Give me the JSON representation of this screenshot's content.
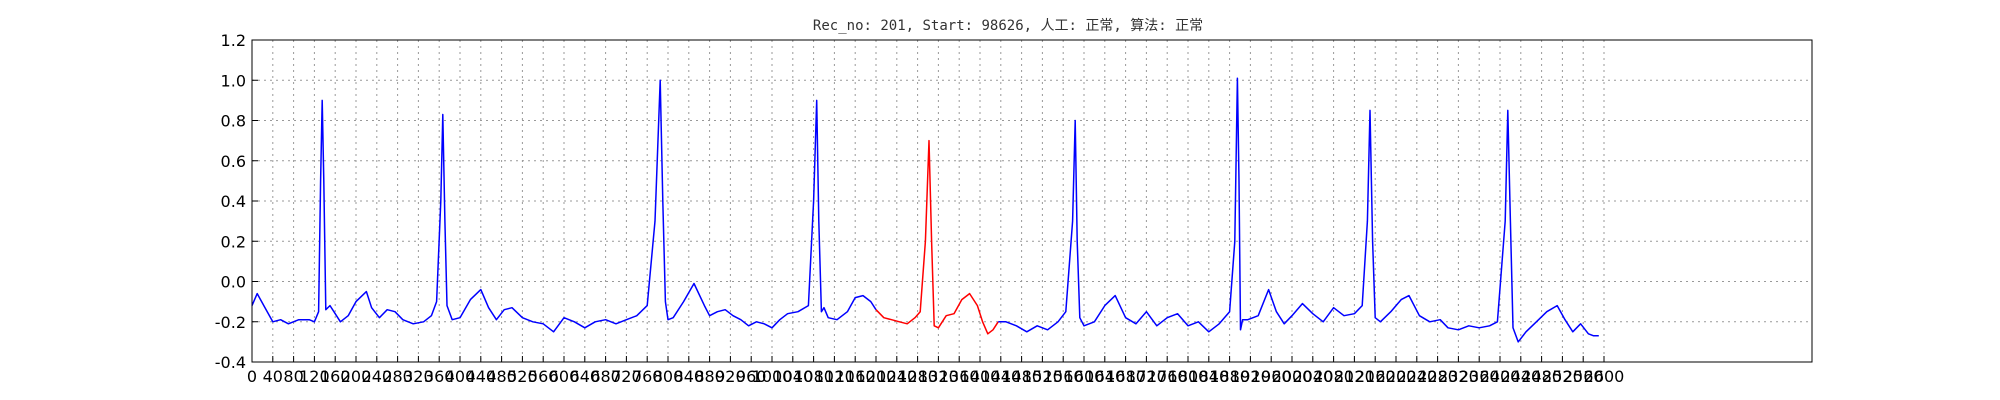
{
  "chart_data": {
    "type": "line",
    "title": "Rec_no: 201, Start: 98626, 人工: 正常, 算法: 正常",
    "xlabel": "",
    "ylabel": "",
    "xlim": [
      0,
      3000
    ],
    "ylim": [
      -0.4,
      1.2
    ],
    "grid": true,
    "x_ticks": [
      0,
      40,
      80,
      120,
      160,
      200,
      240,
      280,
      320,
      360,
      400,
      440,
      480,
      520,
      560,
      600,
      640,
      680,
      720,
      760,
      800,
      840,
      880,
      920,
      960,
      1000,
      1040,
      1080,
      1120,
      1160,
      1200,
      1240,
      1280,
      1320,
      1360,
      1400,
      1440,
      1480,
      1520,
      1560,
      1600,
      1640,
      1680,
      1720,
      1760,
      1800,
      1840,
      1880,
      1920,
      1960,
      2000,
      2040,
      2080,
      2120,
      2160,
      2200,
      2240,
      2280,
      2320,
      2360,
      2400,
      2440,
      2480,
      2520,
      2560,
      2600
    ],
    "y_ticks": [
      "-0.4",
      "-0.2",
      "0.0",
      "0.2",
      "0.4",
      "0.6",
      "0.8",
      "1.0",
      "1.2"
    ],
    "series": [
      {
        "color": "#0000ff",
        "x": [
          0,
          10,
          25,
          40,
          55,
          70,
          90,
          110,
          120,
          128,
          132,
          135,
          138,
          142,
          150,
          160,
          170,
          185,
          200,
          220,
          230,
          245,
          260,
          275,
          290,
          310,
          330,
          345,
          355,
          363,
          367,
          371,
          375,
          385,
          400,
          420,
          440,
          455,
          470,
          485,
          500,
          520,
          540,
          560,
          580,
          600,
          620,
          640,
          660,
          680,
          700,
          720,
          740,
          760,
          775,
          785,
          790,
          795,
          800,
          810,
          830,
          850,
          870,
          880,
          895,
          910,
          925,
          940,
          955,
          970,
          985,
          1000,
          1015,
          1030,
          1050,
          1070,
          1080,
          1086,
          1090,
          1095,
          1100,
          1108,
          1125,
          1145,
          1160,
          1175,
          1190,
          1200
        ],
        "y": [
          -0.12,
          -0.06,
          -0.13,
          -0.2,
          -0.19,
          -0.21,
          -0.19,
          -0.19,
          -0.2,
          -0.15,
          0.5,
          0.9,
          0.5,
          -0.14,
          -0.12,
          -0.16,
          -0.2,
          -0.17,
          -0.1,
          -0.05,
          -0.13,
          -0.18,
          -0.14,
          -0.15,
          -0.19,
          -0.21,
          -0.2,
          -0.17,
          -0.1,
          0.4,
          0.83,
          0.3,
          -0.12,
          -0.19,
          -0.18,
          -0.09,
          -0.04,
          -0.13,
          -0.19,
          -0.14,
          -0.13,
          -0.18,
          -0.2,
          -0.21,
          -0.25,
          -0.18,
          -0.2,
          -0.23,
          -0.2,
          -0.19,
          -0.21,
          -0.19,
          -0.17,
          -0.12,
          0.3,
          1.0,
          0.4,
          -0.1,
          -0.19,
          -0.18,
          -0.1,
          -0.01,
          -0.12,
          -0.17,
          -0.15,
          -0.14,
          -0.17,
          -0.19,
          -0.22,
          -0.2,
          -0.21,
          -0.23,
          -0.19,
          -0.16,
          -0.15,
          -0.12,
          0.4,
          0.9,
          0.3,
          -0.15,
          -0.13,
          -0.18,
          -0.19,
          -0.15,
          -0.08,
          -0.07,
          -0.1,
          -0.14
        ]
      },
      {
        "color": "#ff0000",
        "x": [
          1200,
          1215,
          1230,
          1245,
          1260,
          1275,
          1285,
          1295,
          1302,
          1307,
          1312,
          1320,
          1335,
          1350,
          1365,
          1380,
          1395,
          1405,
          1415,
          1425,
          1435
        ],
        "y": [
          -0.14,
          -0.18,
          -0.19,
          -0.2,
          -0.21,
          -0.18,
          -0.15,
          0.2,
          0.7,
          0.2,
          -0.22,
          -0.23,
          -0.17,
          -0.16,
          -0.09,
          -0.06,
          -0.12,
          -0.2,
          -0.26,
          -0.24,
          -0.2
        ],
        "name": ""
      },
      {
        "color": "#0000ff",
        "x": [
          1435,
          1450,
          1470,
          1490,
          1510,
          1530,
          1550,
          1565,
          1578,
          1583,
          1587,
          1592,
          1600,
          1620,
          1640,
          1660,
          1680,
          1700,
          1720,
          1740,
          1760,
          1780,
          1800,
          1820,
          1840,
          1860,
          1880,
          1890,
          1895,
          1898,
          1901,
          1905,
          1915,
          1935,
          1955,
          1970,
          1985,
          2000,
          2020,
          2040,
          2060,
          2080,
          2100,
          2120,
          2135,
          2145,
          2150,
          2155,
          2160,
          2170,
          2190,
          2210,
          2225,
          2245,
          2265,
          2285,
          2300,
          2320,
          2340,
          2360,
          2380,
          2395,
          2410,
          2415,
          2420,
          2425,
          2435,
          2450,
          2470,
          2490,
          2510,
          2525,
          2540,
          2555,
          2570,
          2580,
          2590
        ],
        "y": [
          -0.2,
          -0.2,
          -0.22,
          -0.25,
          -0.22,
          -0.24,
          -0.2,
          -0.15,
          0.3,
          0.8,
          0.2,
          -0.18,
          -0.22,
          -0.2,
          -0.12,
          -0.07,
          -0.18,
          -0.21,
          -0.15,
          -0.22,
          -0.18,
          -0.16,
          -0.22,
          -0.2,
          -0.25,
          -0.21,
          -0.15,
          0.2,
          1.01,
          0.5,
          -0.24,
          -0.19,
          -0.19,
          -0.17,
          -0.04,
          -0.15,
          -0.21,
          -0.17,
          -0.11,
          -0.16,
          -0.2,
          -0.13,
          -0.17,
          -0.16,
          -0.12,
          0.3,
          0.85,
          0.2,
          -0.18,
          -0.2,
          -0.15,
          -0.09,
          -0.07,
          -0.17,
          -0.2,
          -0.19,
          -0.23,
          -0.24,
          -0.22,
          -0.23,
          -0.22,
          -0.2,
          0.3,
          0.85,
          0.3,
          -0.23,
          -0.3,
          -0.25,
          -0.2,
          -0.15,
          -0.12,
          -0.19,
          -0.25,
          -0.21,
          -0.26,
          -0.27,
          -0.27
        ],
        "name": ""
      }
    ]
  }
}
